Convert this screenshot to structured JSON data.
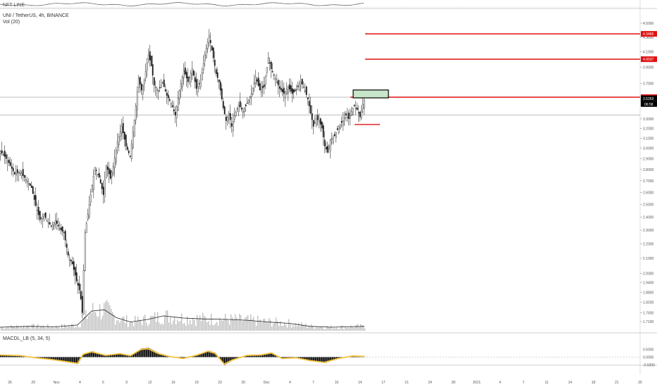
{
  "top_indicator": {
    "label": "NFT LINE"
  },
  "header": {
    "symbol": "UNI / TetherUS, 4h, BINANCE",
    "volume_label": "Vol (20)"
  },
  "macd": {
    "label": "MACDL_LB (5, 34, 5)"
  },
  "colors": {
    "background": "#ffffff",
    "candle_body": "#111111",
    "volume": "#bdbdbd",
    "volume_ma": "#222222",
    "level_line": "#e01010",
    "target_box": "#c8e6c9",
    "macd_line": "#f5c33b",
    "macd_hist": "#000000",
    "price_marker": "#000000"
  },
  "chart_data": {
    "type": "candlestick",
    "y_axis": {
      "min": 1.66,
      "max": 4.72,
      "scale": "log",
      "position": "right",
      "tick_labels": [
        "4.5000",
        "4.3000",
        "4.1000",
        "3.9000",
        "3.7000",
        "3.5000",
        "3.3000",
        "3.2000",
        "3.1000",
        "3.0000",
        "2.9000",
        "2.8000",
        "2.7000",
        "2.6000",
        "2.5000",
        "2.4000",
        "2.3000",
        "2.2000",
        "2.1000",
        "2.0000",
        "1.9400",
        "1.8800",
        "1.8200",
        "1.7600",
        "1.7100"
      ],
      "tick_values": [
        4.5,
        4.3,
        4.1,
        3.9,
        3.7,
        3.5,
        3.3,
        3.2,
        3.1,
        3.0,
        2.9,
        2.8,
        2.7,
        2.6,
        2.5,
        2.4,
        2.3,
        2.2,
        2.1,
        2.0,
        1.94,
        1.88,
        1.82,
        1.76,
        1.71
      ]
    },
    "x_axis": {
      "tick_labels": [
        "26",
        "29",
        "Nov",
        "4",
        "6",
        "9",
        "12",
        "16",
        "19",
        "23",
        "26",
        "Dec",
        "4",
        "7",
        "10",
        "14",
        "17",
        "21",
        "24",
        "28",
        "2021",
        "4",
        "7",
        "11",
        "14",
        "18",
        "21",
        "25"
      ]
    },
    "price_levels": [
      {
        "label": "4.3465",
        "value": 4.3465,
        "color": "#e01010"
      },
      {
        "label": "4.0037",
        "value": 4.0037,
        "color": "#e01010"
      },
      {
        "label": "3.5396",
        "value": 3.5396,
        "color": "#e01010"
      }
    ],
    "horizontal_lines": [
      {
        "value": 3.54,
        "color": "#999999"
      },
      {
        "value": 3.34,
        "color": "#999999"
      }
    ],
    "current_price": {
      "label": "3.5263",
      "value": 3.5263,
      "countdown": "06:58"
    },
    "support_level": 3.24,
    "target_zone": [
      3.54,
      3.64
    ],
    "macd_axis": {
      "tick_labels": [
        "0.5000",
        "0.0000",
        "-0.5000"
      ],
      "tick_values": [
        0.5,
        0.0,
        -0.5
      ]
    },
    "price_path": [
      [
        0,
        2.97
      ],
      [
        6,
        2.92
      ],
      [
        12,
        2.86
      ],
      [
        20,
        2.76
      ],
      [
        28,
        2.78
      ],
      [
        36,
        2.71
      ],
      [
        44,
        2.64
      ],
      [
        50,
        2.49
      ],
      [
        56,
        2.38
      ],
      [
        62,
        2.42
      ],
      [
        66,
        2.37
      ],
      [
        72,
        2.33
      ],
      [
        78,
        2.37
      ],
      [
        84,
        2.31
      ],
      [
        90,
        2.28
      ],
      [
        96,
        2.12
      ],
      [
        102,
        2.06
      ],
      [
        108,
        1.95
      ],
      [
        113,
        1.88
      ],
      [
        116,
        1.76
      ],
      [
        120,
        2.28
      ],
      [
        124,
        2.42
      ],
      [
        128,
        2.58
      ],
      [
        134,
        2.82
      ],
      [
        140,
        2.73
      ],
      [
        146,
        2.58
      ],
      [
        150,
        2.84
      ],
      [
        156,
        2.72
      ],
      [
        160,
        2.83
      ],
      [
        166,
        3.06
      ],
      [
        172,
        3.22
      ],
      [
        178,
        3.02
      ],
      [
        184,
        2.92
      ],
      [
        190,
        3.28
      ],
      [
        196,
        3.76
      ],
      [
        200,
        3.62
      ],
      [
        204,
        3.74
      ],
      [
        210,
        4.06
      ],
      [
        214,
        3.92
      ],
      [
        218,
        3.68
      ],
      [
        224,
        3.62
      ],
      [
        230,
        3.71
      ],
      [
        236,
        3.56
      ],
      [
        242,
        3.47
      ],
      [
        248,
        3.34
      ],
      [
        254,
        3.62
      ],
      [
        260,
        3.86
      ],
      [
        266,
        3.72
      ],
      [
        272,
        3.88
      ],
      [
        278,
        3.64
      ],
      [
        284,
        3.72
      ],
      [
        290,
        4.06
      ],
      [
        296,
        4.32
      ],
      [
        302,
        4.02
      ],
      [
        306,
        3.82
      ],
      [
        310,
        3.72
      ],
      [
        316,
        3.42
      ],
      [
        320,
        3.28
      ],
      [
        324,
        3.36
      ],
      [
        328,
        3.22
      ],
      [
        332,
        3.33
      ],
      [
        338,
        3.45
      ],
      [
        344,
        3.38
      ],
      [
        350,
        3.47
      ],
      [
        356,
        3.58
      ],
      [
        362,
        3.78
      ],
      [
        368,
        3.62
      ],
      [
        374,
        3.66
      ],
      [
        380,
        4.02
      ],
      [
        384,
        3.88
      ],
      [
        390,
        3.76
      ],
      [
        396,
        3.64
      ],
      [
        402,
        3.58
      ],
      [
        408,
        3.66
      ],
      [
        414,
        3.58
      ],
      [
        420,
        3.63
      ],
      [
        426,
        3.72
      ],
      [
        430,
        3.66
      ],
      [
        436,
        3.52
      ],
      [
        440,
        3.36
      ],
      [
        444,
        3.22
      ],
      [
        448,
        3.3
      ],
      [
        452,
        3.28
      ],
      [
        456,
        3.2
      ],
      [
        460,
        3.02
      ],
      [
        464,
        2.96
      ],
      [
        468,
        3.08
      ],
      [
        474,
        3.12
      ],
      [
        480,
        3.22
      ],
      [
        486,
        3.28
      ],
      [
        490,
        3.34
      ],
      [
        494,
        3.3
      ],
      [
        498,
        3.38
      ],
      [
        502,
        3.44
      ],
      [
        506,
        3.4
      ],
      [
        510,
        3.32
      ],
      [
        514,
        3.46
      ],
      [
        517,
        3.53
      ]
    ],
    "macd_path": [
      [
        0,
        0.15
      ],
      [
        30,
        0.1
      ],
      [
        50,
        -0.05
      ],
      [
        70,
        -0.15
      ],
      [
        90,
        -0.3
      ],
      [
        110,
        -0.45
      ],
      [
        118,
        0.2
      ],
      [
        130,
        0.38
      ],
      [
        150,
        0.12
      ],
      [
        170,
        0.25
      ],
      [
        185,
        0.1
      ],
      [
        200,
        0.55
      ],
      [
        210,
        0.6
      ],
      [
        225,
        0.25
      ],
      [
        240,
        0.05
      ],
      [
        260,
        -0.1
      ],
      [
        280,
        0.15
      ],
      [
        295,
        0.42
      ],
      [
        305,
        0.28
      ],
      [
        318,
        -0.5
      ],
      [
        330,
        -0.2
      ],
      [
        350,
        0.12
      ],
      [
        370,
        0.15
      ],
      [
        385,
        0.3
      ],
      [
        400,
        -0.1
      ],
      [
        420,
        -0.05
      ],
      [
        440,
        -0.25
      ],
      [
        460,
        -0.38
      ],
      [
        480,
        -0.1
      ],
      [
        500,
        0.08
      ],
      [
        517,
        0.05
      ]
    ],
    "volume_ma_path": [
      [
        0,
        0.08
      ],
      [
        40,
        0.1
      ],
      [
        80,
        0.09
      ],
      [
        110,
        0.13
      ],
      [
        130,
        0.45
      ],
      [
        148,
        0.48
      ],
      [
        165,
        0.3
      ],
      [
        185,
        0.2
      ],
      [
        210,
        0.26
      ],
      [
        232,
        0.34
      ],
      [
        260,
        0.29
      ],
      [
        290,
        0.27
      ],
      [
        320,
        0.26
      ],
      [
        350,
        0.24
      ],
      [
        380,
        0.2
      ],
      [
        410,
        0.17
      ],
      [
        440,
        0.1
      ],
      [
        470,
        0.08
      ],
      [
        517,
        0.1
      ]
    ]
  }
}
